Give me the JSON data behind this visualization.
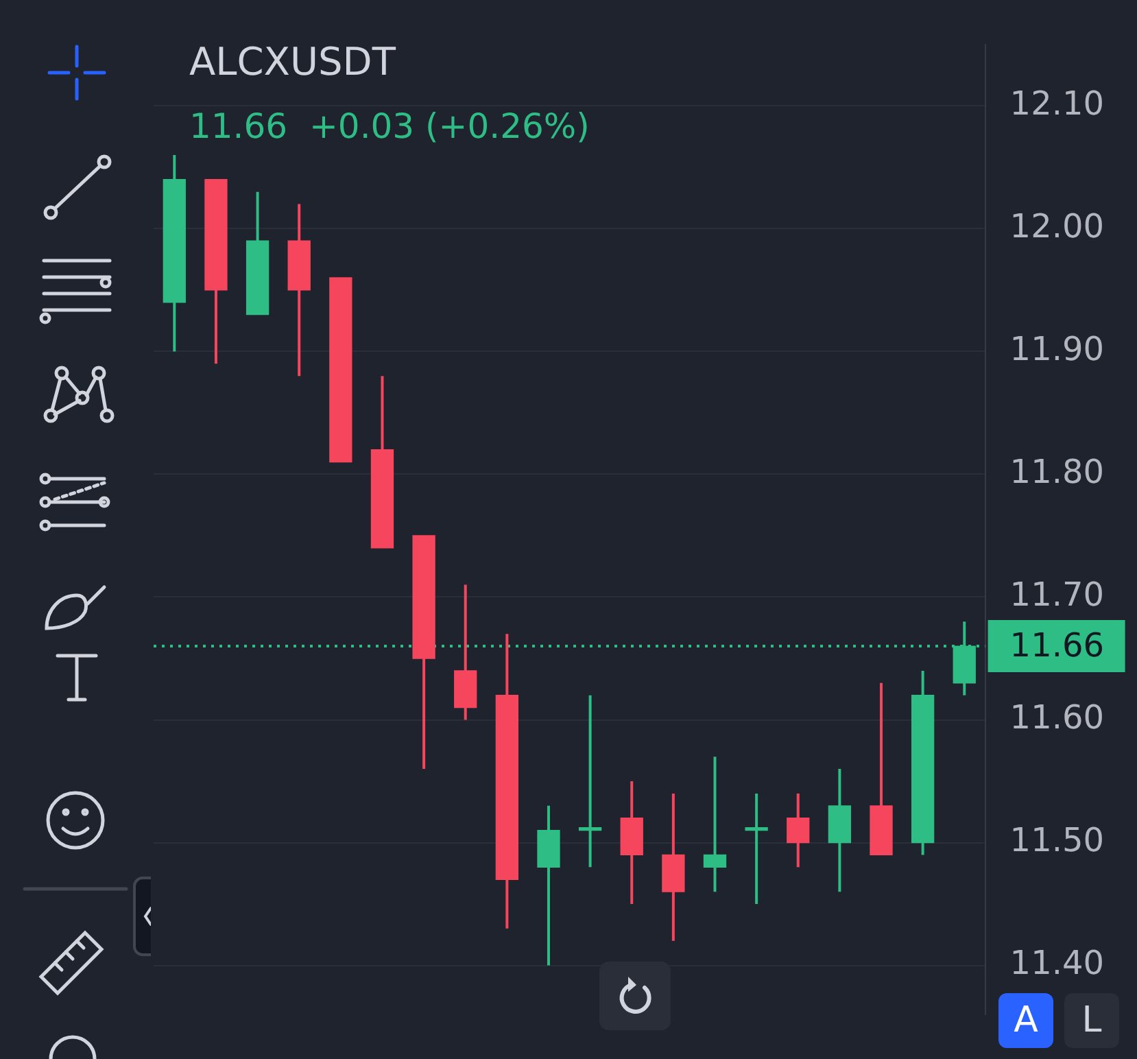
{
  "chart_data": {
    "type": "candlestick",
    "title": "ALCXUSDT",
    "categories": [
      null,
      null,
      null,
      null,
      null,
      null,
      null,
      null,
      null,
      null,
      null,
      null,
      null,
      null,
      null,
      null,
      null,
      null,
      null,
      null
    ],
    "ohlc": [
      [
        11.94,
        12.06,
        11.9,
        12.04
      ],
      [
        12.04,
        12.04,
        11.89,
        11.95
      ],
      [
        11.93,
        12.03,
        11.93,
        11.99
      ],
      [
        11.99,
        12.02,
        11.88,
        11.95
      ],
      [
        11.96,
        11.96,
        11.81,
        11.81
      ],
      [
        11.82,
        11.88,
        11.74,
        11.74
      ],
      [
        11.75,
        11.75,
        11.56,
        11.65
      ],
      [
        11.64,
        11.71,
        11.6,
        11.61
      ],
      [
        11.62,
        11.67,
        11.43,
        11.47
      ],
      [
        11.48,
        11.53,
        11.4,
        11.51
      ],
      [
        11.51,
        11.62,
        11.48,
        11.51
      ],
      [
        11.52,
        11.55,
        11.45,
        11.49
      ],
      [
        11.49,
        11.54,
        11.42,
        11.46
      ],
      [
        11.48,
        11.57,
        11.46,
        11.49
      ],
      [
        11.51,
        11.54,
        11.45,
        11.51
      ],
      [
        11.52,
        11.54,
        11.48,
        11.5
      ],
      [
        11.5,
        11.56,
        11.46,
        11.53
      ],
      [
        11.53,
        11.63,
        11.49,
        11.49
      ],
      [
        11.5,
        11.64,
        11.49,
        11.62
      ],
      [
        11.63,
        11.68,
        11.62,
        11.66
      ]
    ],
    "colors": [
      "#2ebd85",
      "#f6465d",
      "#2ebd85",
      "#f6465d",
      "#f6465d",
      "#f6465d",
      "#f6465d",
      "#f6465d",
      "#f6465d",
      "#2ebd85",
      "#2ebd85",
      "#f6465d",
      "#f6465d",
      "#2ebd85",
      "#2ebd85",
      "#f6465d",
      "#2ebd85",
      "#f6465d",
      "#2ebd85",
      "#2ebd85"
    ],
    "ylim": [
      11.36,
      12.15
    ],
    "yticks": [
      {
        "value": 11.4,
        "label": "11.40"
      },
      {
        "value": 11.5,
        "label": "11.50"
      },
      {
        "value": 11.6,
        "label": "11.60"
      },
      {
        "value": 11.7,
        "label": "11.70"
      },
      {
        "value": 11.8,
        "label": "11.80"
      },
      {
        "value": 11.9,
        "label": "11.90"
      },
      {
        "value": 12.0,
        "label": "12.00"
      },
      {
        "value": 12.1,
        "label": "12.10"
      }
    ],
    "grid": "y",
    "tick_labels": "y",
    "ref_lines": [
      {
        "axis": "y",
        "value": 11.66,
        "label": "11.66",
        "color": "#2ebd85",
        "line_style": "dotted"
      }
    ],
    "annotations": [
      "11.66  +0.03 (+0.26%)",
      "A",
      "L"
    ]
  }
}
